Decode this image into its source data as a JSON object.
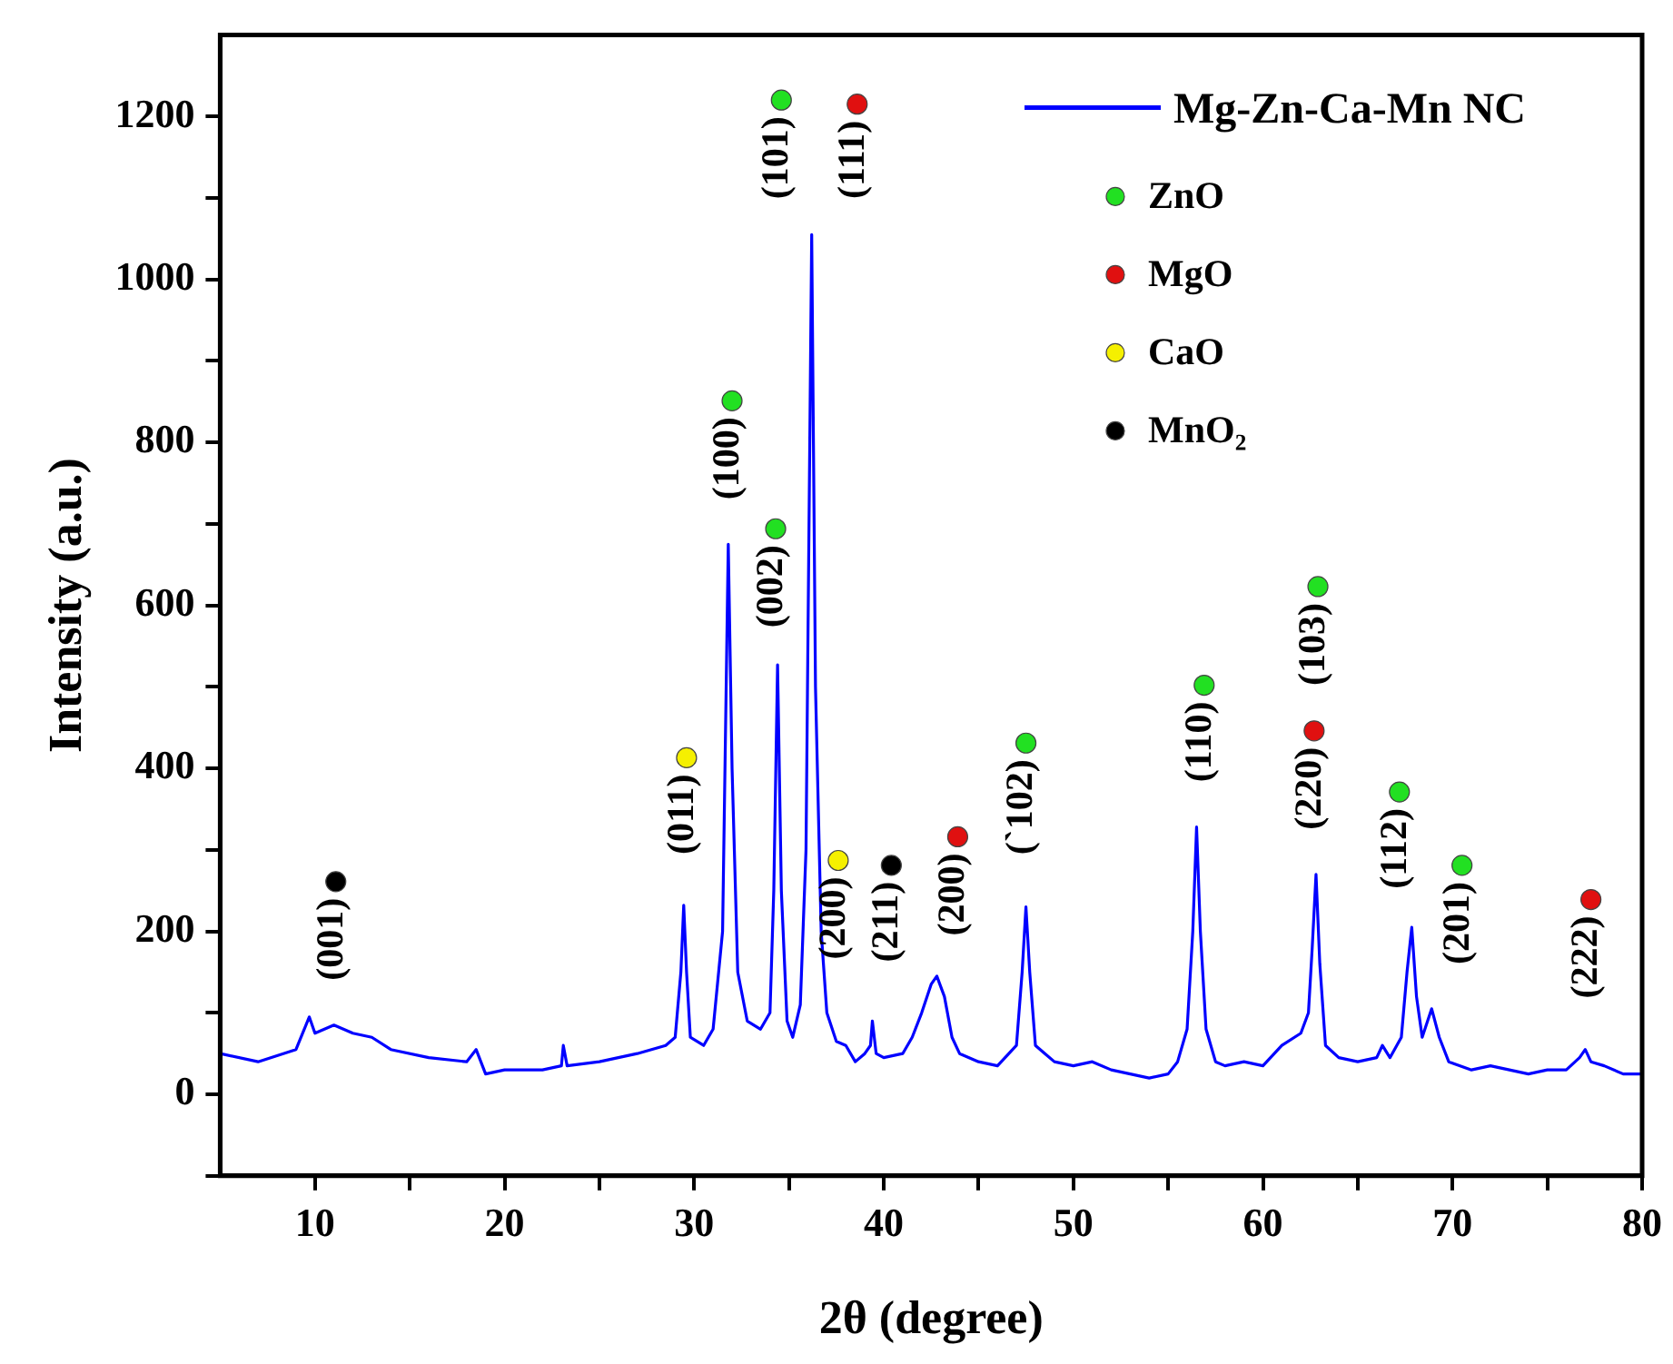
{
  "chart_data": {
    "type": "line",
    "xlabel": "2θ (degree)",
    "ylabel": "Intensity (a.u.)",
    "xlim": [
      5,
      80
    ],
    "xticks": [
      10,
      {
        "value": 15,
        "label": null
      },
      20,
      {
        "value": 25,
        "label": null
      },
      30,
      {
        "value": 35,
        "label": null
      },
      40,
      {
        "value": 45,
        "label": null
      },
      50,
      {
        "value": 55,
        "label": null
      },
      60,
      {
        "value": 65,
        "label": null
      },
      70,
      {
        "value": 75,
        "label": null
      },
      80
    ],
    "ylim": [
      -100,
      1300
    ],
    "yticks": [
      {
        "value": -100,
        "label": null
      },
      0,
      {
        "value": 100,
        "label": null
      },
      200,
      {
        "value": 300,
        "label": null
      },
      400,
      {
        "value": 500,
        "label": null
      },
      600,
      {
        "value": 700,
        "label": null
      },
      800,
      {
        "value": 900,
        "label": null
      },
      1000,
      {
        "value": 1100,
        "label": null
      },
      1200
    ],
    "grid": false,
    "legend": "top right",
    "series": [
      {
        "name": "Mg-Zn-Ca-Mn NC",
        "color": "#0000ff",
        "marker": "none",
        "x": [
          5,
          7,
          9,
          9.7,
          10,
          11,
          12,
          13,
          14,
          16,
          18,
          18.5,
          19,
          20,
          22,
          23,
          23.1,
          23.3,
          25,
          27,
          28.5,
          29,
          29.3,
          29.45,
          29.6,
          29.8,
          30.5,
          31,
          31.5,
          31.8,
          32,
          32.3,
          32.8,
          33.5,
          34,
          34.2,
          34.4,
          34.6,
          34.9,
          35.2,
          35.6,
          35.9,
          36.2,
          36.4,
          36.7,
          37,
          37.5,
          38,
          38.5,
          39,
          39.3,
          39.4,
          39.6,
          40,
          41,
          41.5,
          42,
          42.5,
          42.8,
          43.2,
          43.6,
          44,
          45,
          46,
          47,
          47.3,
          47.5,
          47.7,
          48,
          48.5,
          49,
          50,
          51,
          52,
          53,
          54,
          55,
          55.5,
          56,
          56.3,
          56.5,
          56.7,
          57,
          57.5,
          58,
          59,
          60,
          61,
          62,
          62.4,
          62.6,
          62.8,
          63,
          63.3,
          64,
          65,
          66,
          66.3,
          66.7,
          67.3,
          67.6,
          67.85,
          68.1,
          68.4,
          68.9,
          69.3,
          69.8,
          71,
          72,
          73,
          74,
          75,
          76,
          76.7,
          77,
          77.3,
          78,
          79,
          80
        ],
        "values": [
          50,
          40,
          55,
          95,
          75,
          85,
          75,
          70,
          55,
          45,
          40,
          55,
          25,
          30,
          30,
          35,
          60,
          35,
          40,
          50,
          60,
          70,
          150,
          232,
          150,
          70,
          60,
          80,
          200,
          675,
          400,
          150,
          90,
          80,
          100,
          250,
          527,
          250,
          90,
          70,
          110,
          300,
          1055,
          500,
          200,
          100,
          65,
          60,
          40,
          50,
          60,
          90,
          50,
          45,
          50,
          70,
          100,
          135,
          145,
          120,
          70,
          50,
          40,
          35,
          60,
          150,
          230,
          150,
          60,
          50,
          40,
          35,
          40,
          30,
          25,
          20,
          25,
          40,
          80,
          200,
          328,
          200,
          80,
          40,
          35,
          40,
          35,
          60,
          75,
          100,
          180,
          270,
          160,
          60,
          45,
          40,
          45,
          60,
          45,
          70,
          150,
          205,
          120,
          70,
          105,
          70,
          40,
          30,
          35,
          30,
          25,
          30,
          30,
          45,
          55,
          40,
          35,
          25,
          25
        ]
      },
      {
        "name": "ZnO",
        "type": "scatter",
        "color": "#22e022",
        "marker": "circle",
        "x": [
          32.0,
          34.3,
          34.6,
          47.5,
          56.9,
          62.9,
          67.2,
          70.5
        ],
        "values": [
          851,
          694,
          1220,
          431,
          502,
          623,
          371,
          281
        ]
      },
      {
        "name": "MgO",
        "type": "scatter",
        "color": "#e01010",
        "marker": "circle",
        "x": [
          38.6,
          43.9,
          62.7,
          77.3
        ],
        "values": [
          1215,
          316,
          446,
          239
        ]
      },
      {
        "name": "CaO",
        "type": "scatter",
        "color": "#f5f000",
        "marker": "circle",
        "x": [
          29.6,
          37.6
        ],
        "values": [
          413,
          287
        ]
      },
      {
        "name": "MnO₂",
        "type": "scatter",
        "color": "#000000",
        "marker": "circle",
        "x": [
          11.1,
          40.4
        ],
        "values": [
          261,
          281
        ]
      }
    ],
    "annotations": [
      {
        "text": "(001)",
        "x": 11.1,
        "y": 261
      },
      {
        "text": "(011)",
        "x": 29.6,
        "y": 413
      },
      {
        "text": "(100)",
        "x": 32.0,
        "y": 851
      },
      {
        "text": "(002)",
        "x": 34.3,
        "y": 694
      },
      {
        "text": "(101)",
        "x": 34.6,
        "y": 1220
      },
      {
        "text": "(111)",
        "x": 38.6,
        "y": 1215
      },
      {
        "text": "(200)",
        "x": 37.6,
        "y": 287
      },
      {
        "text": "(211)",
        "x": 40.4,
        "y": 281
      },
      {
        "text": "(200)",
        "x": 43.9,
        "y": 316
      },
      {
        "text": "(`102)",
        "x": 47.5,
        "y": 431
      },
      {
        "text": "(110)",
        "x": 56.9,
        "y": 502
      },
      {
        "text": "(220)",
        "x": 62.7,
        "y": 446
      },
      {
        "text": "(103)",
        "x": 62.9,
        "y": 623
      },
      {
        "text": "(112)",
        "x": 67.2,
        "y": 371
      },
      {
        "text": "(201)",
        "x": 70.5,
        "y": 281
      },
      {
        "text": "(222)",
        "x": 77.3,
        "y": 239
      }
    ]
  }
}
